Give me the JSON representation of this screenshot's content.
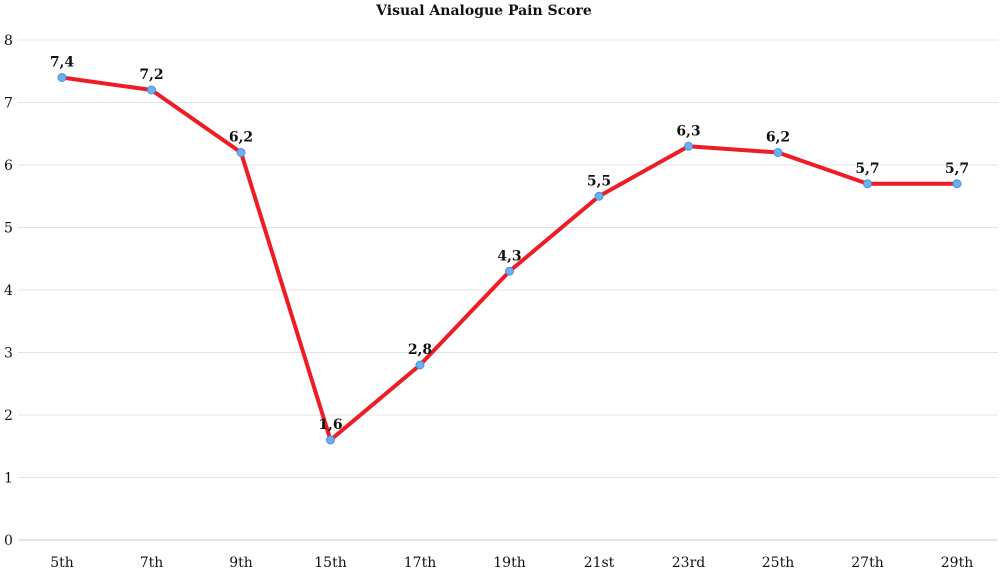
{
  "chart_data": {
    "type": "line",
    "title": "Visual Analogue Pain Score",
    "xlabel": "",
    "ylabel": "",
    "categories": [
      "5th",
      "7th",
      "9th",
      "15th",
      "17th",
      "19th",
      "21st",
      "23rd",
      "25th",
      "27th",
      "29th"
    ],
    "series": [
      {
        "values": [
          7.4,
          7.2,
          6.2,
          1.6,
          2.8,
          4.3,
          5.5,
          6.3,
          6.2,
          5.7,
          5.7
        ],
        "labels": [
          "7,4",
          "7,2",
          "6,2",
          "1,6",
          "2,8",
          "4,3",
          "5,5",
          "6,3",
          "6,2",
          "5,7",
          "5,7"
        ],
        "color": "#ee1c25",
        "marker_color": "#6ab0f0"
      }
    ],
    "ylim": [
      0,
      8
    ],
    "yticks": [
      "0",
      "1",
      "2",
      "3",
      "4",
      "5",
      "6",
      "7",
      "8"
    ],
    "grid": true,
    "legend": "none"
  }
}
